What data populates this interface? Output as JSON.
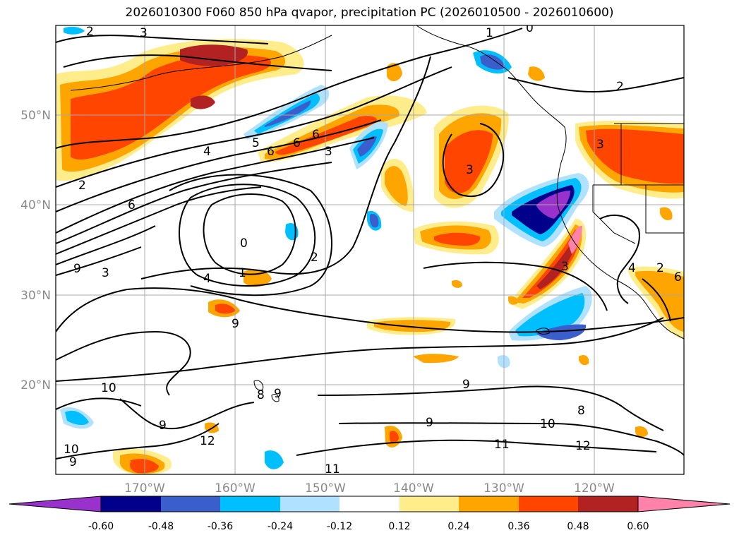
{
  "title": "2026010300 F060 850 hPa qvapor, precipitation PC (2026010500 - 2026010600)",
  "lon_labels": [
    "170°W",
    "160°W",
    "150°W",
    "140°W",
    "130°W",
    "120°W"
  ],
  "lat_labels": [
    "50°N",
    "40°N",
    "30°N",
    "20°N"
  ],
  "contour_labels": [
    "2",
    "3",
    "1",
    "0",
    "2",
    "5",
    "6",
    "6",
    "6",
    "3",
    "4",
    "3",
    "2",
    "6",
    "3",
    "0",
    "2",
    "1",
    "4",
    "9",
    "9",
    "10",
    "8",
    "9",
    "9",
    "12",
    "10",
    "9",
    "11",
    "9",
    "11",
    "12",
    "10",
    "8",
    "2",
    "6",
    "4",
    "9",
    "3",
    "3"
  ],
  "colorbar": {
    "colors": [
      "#9932CC",
      "#00008B",
      "#3A5FCD",
      "#00BFFF",
      "#B0E2FF",
      "#FFFFFF",
      "#FFEC8B",
      "#FFA500",
      "#FF4500",
      "#B22222",
      "#FF82AB"
    ],
    "ticks": [
      "-0.60",
      "-0.48",
      "-0.36",
      "-0.24",
      "-0.12",
      "0.12",
      "0.24",
      "0.36",
      "0.48",
      "0.60"
    ]
  }
}
